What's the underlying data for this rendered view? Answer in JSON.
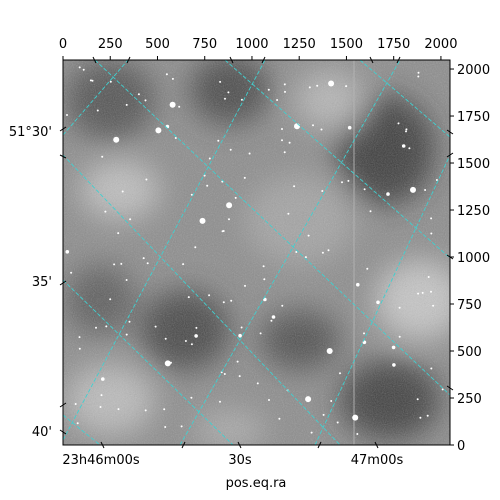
{
  "chart_data": {
    "type": "heatmap",
    "title": "",
    "xlabel": "pos.eq.ra",
    "ylabel": "",
    "pixel_axes": {
      "x_top": {
        "lim": [
          0,
          2048
        ],
        "ticks": [
          0,
          250,
          500,
          750,
          1000,
          1250,
          1500,
          1750,
          2000
        ],
        "labels": [
          "0",
          "250",
          "500",
          "750",
          "1000",
          "1250",
          "1500",
          "1750",
          "2000"
        ]
      },
      "y_right": {
        "lim": [
          0,
          2048
        ],
        "ticks": [
          0,
          250,
          500,
          750,
          1000,
          1250,
          1500,
          1750,
          2000
        ],
        "labels": [
          "0",
          "250",
          "500",
          "750",
          "1000",
          "1250",
          "1500",
          "1750",
          "2000"
        ]
      }
    },
    "world_axes": {
      "ra_labels": [
        "23h46m00s",
        "30s",
        "47m00s"
      ],
      "dec_labels": [
        "51°30'",
        "35'",
        "40'"
      ]
    },
    "grid": true,
    "colormap": "gray",
    "grid_color": "#40d0d0"
  }
}
